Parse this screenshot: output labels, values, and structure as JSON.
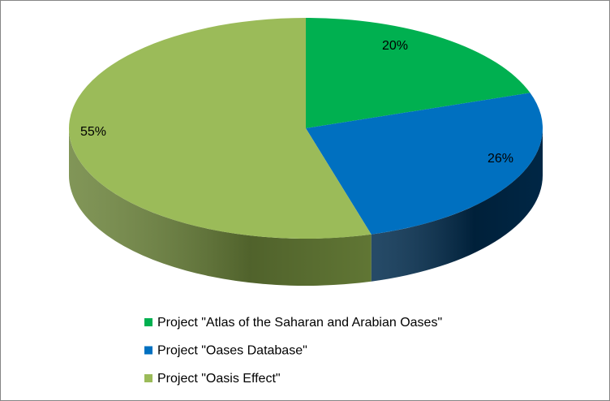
{
  "chart_data": {
    "type": "pie",
    "categories": [
      "Project \"Atlas of the Saharan and Arabian Oases\"",
      "Project \"Oases Database\"",
      "Project \"Oasis Effect\""
    ],
    "values": [
      20,
      26,
      55
    ],
    "value_labels": [
      "20%",
      "26%",
      "55%"
    ],
    "colors": [
      "#00b050",
      "#0070c0",
      "#9bbb59"
    ],
    "side_colors": [
      "#007a38",
      "#002b4d",
      "#6b833a"
    ],
    "legend": "bottom"
  }
}
